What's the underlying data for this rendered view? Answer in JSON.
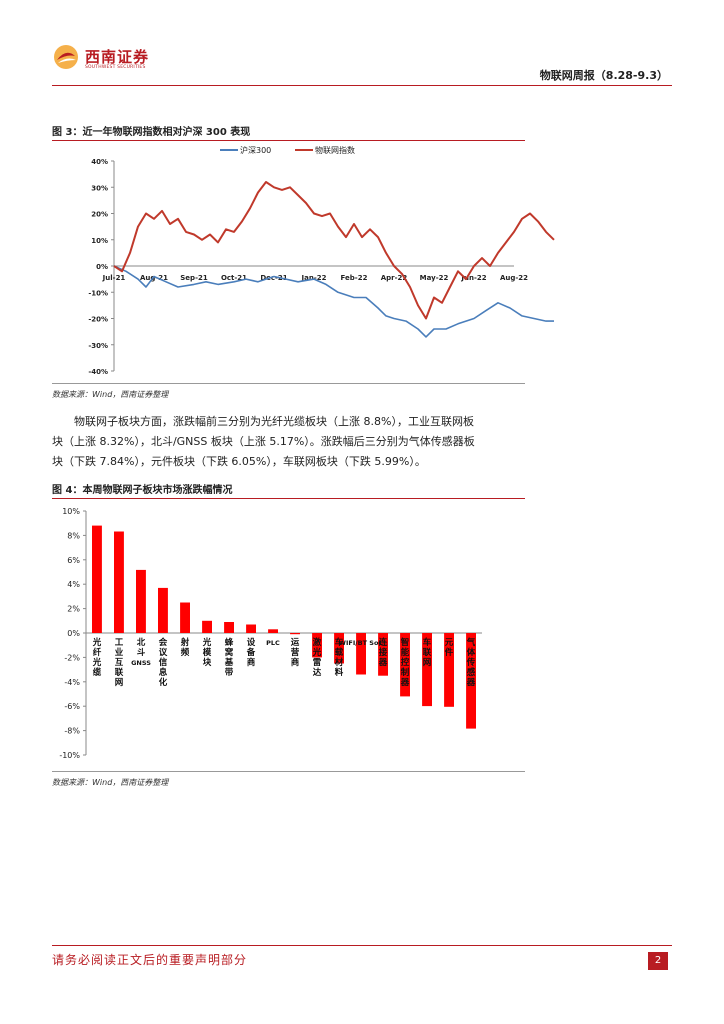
{
  "header": {
    "brand_name": "西南证券",
    "brand_sub": "SOUTHWEST SECURITIES",
    "report_title": "物联网周报（8.28-9.3）"
  },
  "figure3": {
    "title": "图 3：近一年物联网指数相对沪深 300 表现",
    "source": "数据来源：Wind，西南证券整理",
    "chart_data": {
      "type": "line",
      "title": "",
      "x": [
        "Jul-21",
        "Aug-21",
        "Sep-21",
        "Oct-21",
        "Dec-21",
        "Jan-22",
        "Feb-22",
        "Apr-22",
        "May-22",
        "Jun-22",
        "Aug-22"
      ],
      "x_ticks": [
        "Jul-21",
        "Aug-21",
        "Sep-21",
        "Oct-21",
        "Dec-21",
        "Jan-22",
        "Feb-22",
        "Apr-22",
        "May-22",
        "Jun-22",
        "Aug-22"
      ],
      "y_ticks": [
        "40%",
        "30%",
        "20%",
        "10%",
        "0%",
        "-10%",
        "-20%",
        "-30%",
        "-40%"
      ],
      "ylim": [
        -40,
        40
      ],
      "legend_position": "top",
      "grid": false,
      "series": [
        {
          "name": "沪深300",
          "color": "#4a7ebb",
          "points": [
            [
              0,
              0
            ],
            [
              0.3,
              -2
            ],
            [
              0.6,
              -5
            ],
            [
              0.8,
              -8
            ],
            [
              1.0,
              -4
            ],
            [
              1.3,
              -6
            ],
            [
              1.6,
              -8
            ],
            [
              2.0,
              -7
            ],
            [
              2.3,
              -6
            ],
            [
              2.6,
              -7
            ],
            [
              3.0,
              -6
            ],
            [
              3.3,
              -5
            ],
            [
              3.6,
              -6
            ],
            [
              4.0,
              -4
            ],
            [
              4.3,
              -5
            ],
            [
              4.6,
              -6
            ],
            [
              5.0,
              -5
            ],
            [
              5.3,
              -7
            ],
            [
              5.6,
              -10
            ],
            [
              6.0,
              -12
            ],
            [
              6.3,
              -12
            ],
            [
              6.6,
              -16
            ],
            [
              6.8,
              -19
            ],
            [
              7.0,
              -20
            ],
            [
              7.3,
              -21
            ],
            [
              7.6,
              -24
            ],
            [
              7.8,
              -27
            ],
            [
              8.0,
              -24
            ],
            [
              8.3,
              -24
            ],
            [
              8.6,
              -22
            ],
            [
              9.0,
              -20
            ],
            [
              9.3,
              -17
            ],
            [
              9.6,
              -14
            ],
            [
              9.9,
              -16
            ],
            [
              10.2,
              -19
            ],
            [
              10.5,
              -20
            ],
            [
              10.8,
              -21
            ],
            [
              11.0,
              -21
            ]
          ]
        },
        {
          "name": "物联网指数",
          "color": "#c0392b",
          "points": [
            [
              0,
              0
            ],
            [
              0.2,
              -2
            ],
            [
              0.4,
              5
            ],
            [
              0.6,
              15
            ],
            [
              0.8,
              20
            ],
            [
              1.0,
              18
            ],
            [
              1.2,
              21
            ],
            [
              1.4,
              16
            ],
            [
              1.6,
              18
            ],
            [
              1.8,
              13
            ],
            [
              2.0,
              12
            ],
            [
              2.2,
              10
            ],
            [
              2.4,
              12
            ],
            [
              2.6,
              9
            ],
            [
              2.8,
              14
            ],
            [
              3.0,
              13
            ],
            [
              3.2,
              17
            ],
            [
              3.4,
              22
            ],
            [
              3.6,
              28
            ],
            [
              3.8,
              32
            ],
            [
              4.0,
              30
            ],
            [
              4.2,
              29
            ],
            [
              4.4,
              30
            ],
            [
              4.6,
              27
            ],
            [
              4.8,
              24
            ],
            [
              5.0,
              20
            ],
            [
              5.2,
              19
            ],
            [
              5.4,
              20
            ],
            [
              5.6,
              15
            ],
            [
              5.8,
              11
            ],
            [
              6.0,
              16
            ],
            [
              6.2,
              11
            ],
            [
              6.4,
              14
            ],
            [
              6.6,
              11
            ],
            [
              6.8,
              5
            ],
            [
              7.0,
              0
            ],
            [
              7.2,
              -3
            ],
            [
              7.4,
              -8
            ],
            [
              7.6,
              -15
            ],
            [
              7.8,
              -20
            ],
            [
              8.0,
              -12
            ],
            [
              8.2,
              -14
            ],
            [
              8.4,
              -8
            ],
            [
              8.6,
              -2
            ],
            [
              8.8,
              -5
            ],
            [
              9.0,
              0
            ],
            [
              9.2,
              3
            ],
            [
              9.4,
              0
            ],
            [
              9.6,
              5
            ],
            [
              9.8,
              9
            ],
            [
              10.0,
              13
            ],
            [
              10.2,
              18
            ],
            [
              10.4,
              20
            ],
            [
              10.6,
              17
            ],
            [
              10.8,
              13
            ],
            [
              11.0,
              10
            ]
          ]
        }
      ]
    }
  },
  "paragraph": {
    "line1": "物联网子板块方面，涨跌幅前三分别为光纤光缆板块（上涨 8.8%），工业互联网板",
    "line2": "块（上涨 8.32%），北斗/GNSS 板块（上涨 5.17%）。涨跌幅后三分别为气体传感器板",
    "line3": "块（下跌 7.84%），元件板块（下跌 6.05%），车联网板块（下跌 5.99%）。"
  },
  "figure4": {
    "title": "图 4：本周物联网子板块市场涨跌幅情况",
    "source": "数据来源：Wind，西南证券整理",
    "chart_data": {
      "type": "bar",
      "title": "",
      "categories": [
        "光纤光缆",
        "工业互联网",
        "北斗GNSS",
        "会议信息化",
        "射频",
        "光模块",
        "蜂窝基带",
        "设备商",
        "PLC",
        "运营商",
        "激光雷达",
        "车载材料",
        "WIFI/BT SoC",
        "连接器",
        "智能控制器",
        "车联网",
        "元件",
        "气体传感器"
      ],
      "values": [
        8.8,
        8.32,
        5.17,
        3.7,
        2.5,
        1.0,
        0.9,
        0.7,
        0.3,
        -0.1,
        -2.0,
        -2.5,
        -3.4,
        -3.5,
        -5.2,
        -5.99,
        -6.05,
        -7.84
      ],
      "y_ticks": [
        "10%",
        "8%",
        "6%",
        "4%",
        "2%",
        "0%",
        "-2%",
        "-4%",
        "-6%",
        "-8%",
        "-10%"
      ],
      "ylim": [
        -10,
        10
      ],
      "bar_color": "#ff0000",
      "grid": false
    }
  },
  "footer": {
    "disclaimer": "请务必阅读正文后的重要声明部分",
    "page": "2"
  }
}
